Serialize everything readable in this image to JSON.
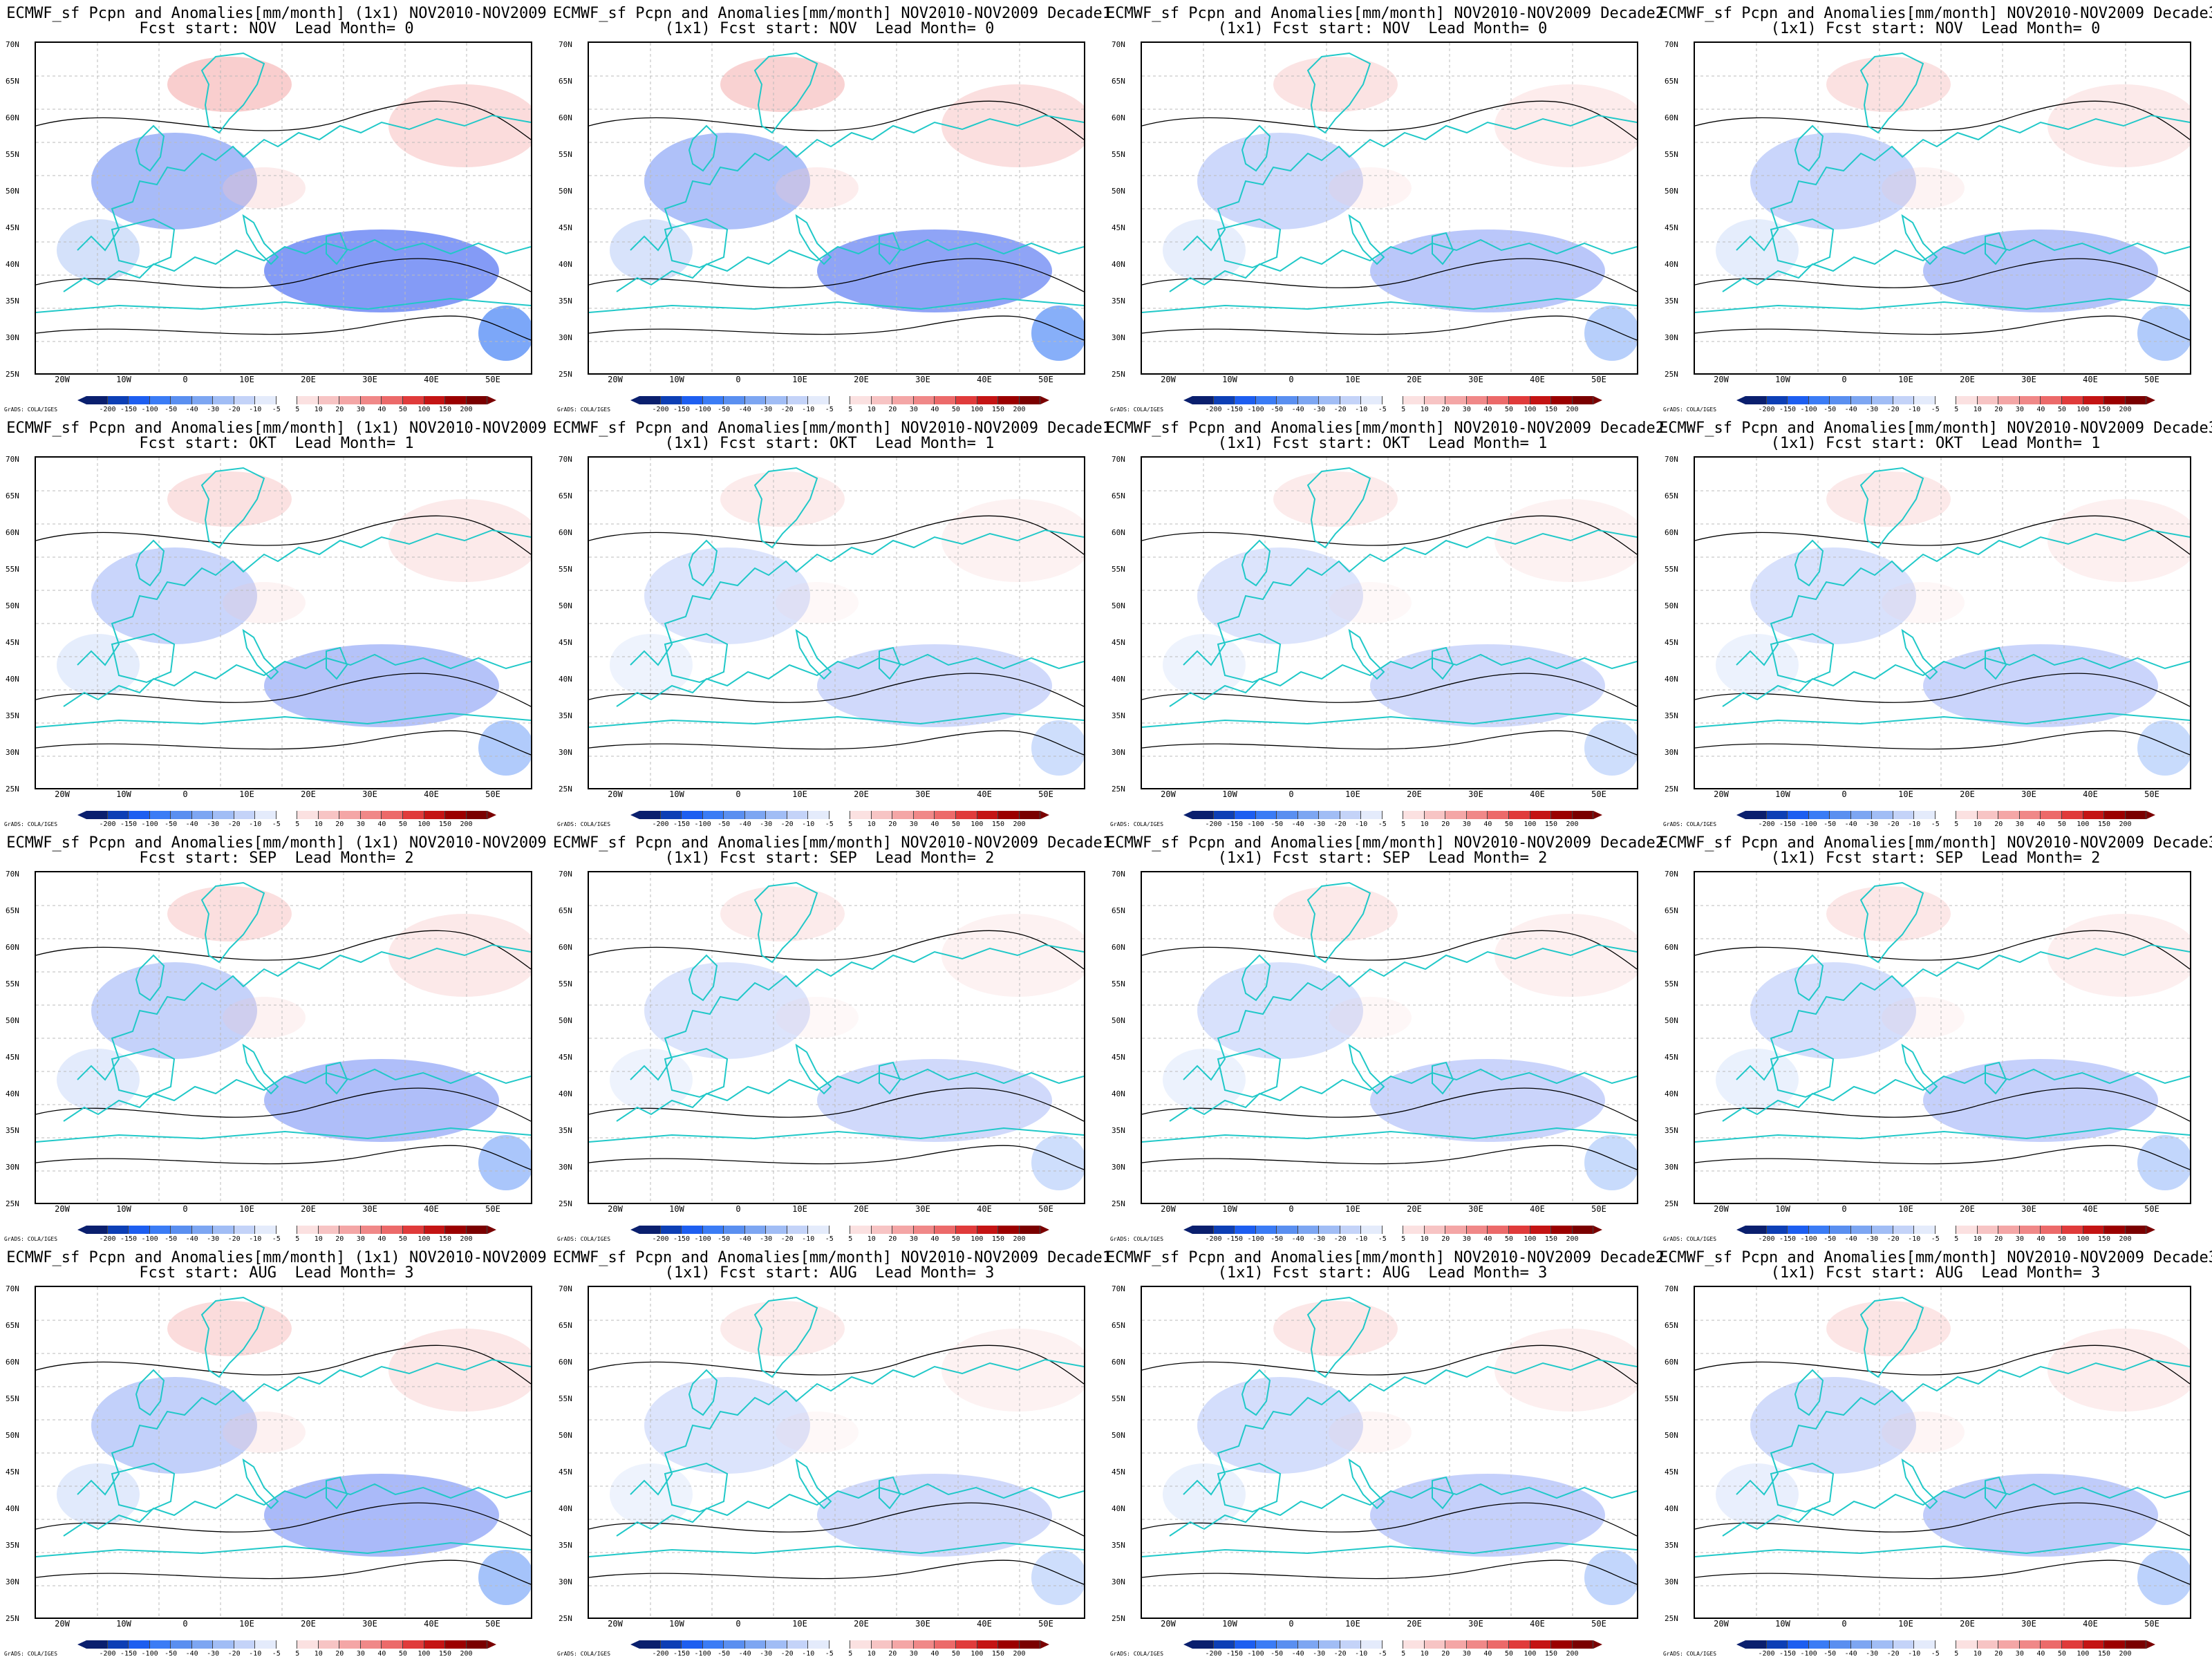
{
  "panels": [
    {
      "title1": "ECMWF_sf Pcpn and Anomalies[mm/month] (1x1) NOV2010-NOV2009",
      "title2": "Fcst start: NOV  Lead Month= 0"
    },
    {
      "title1": "ECMWF_sf Pcpn and Anomalies[mm/month] NOV2010-NOV2009 Decade1",
      "title2": "(1x1) Fcst start: NOV  Lead Month= 0"
    },
    {
      "title1": "ECMWF_sf Pcpn and Anomalies[mm/month] NOV2010-NOV2009 Decade2",
      "title2": "(1x1) Fcst start: NOV  Lead Month= 0"
    },
    {
      "title1": "ECMWF_sf Pcpn and Anomalies[mm/month] NOV2010-NOV2009 Decade3",
      "title2": "(1x1) Fcst start: NOV  Lead Month= 0"
    },
    {
      "title1": "ECMWF_sf Pcpn and Anomalies[mm/month] (1x1) NOV2010-NOV2009",
      "title2": "Fcst start: OKT  Lead Month= 1"
    },
    {
      "title1": "ECMWF_sf Pcpn and Anomalies[mm/month] NOV2010-NOV2009 Decade1",
      "title2": "(1x1) Fcst start: OKT  Lead Month= 1"
    },
    {
      "title1": "ECMWF_sf Pcpn and Anomalies[mm/month] NOV2010-NOV2009 Decade2",
      "title2": "(1x1) Fcst start: OKT  Lead Month= 1"
    },
    {
      "title1": "ECMWF_sf Pcpn and Anomalies[mm/month] NOV2010-NOV2009 Decade3",
      "title2": "(1x1) Fcst start: OKT  Lead Month= 1"
    },
    {
      "title1": "ECMWF_sf Pcpn and Anomalies[mm/month] (1x1) NOV2010-NOV2009",
      "title2": "Fcst start: SEP  Lead Month= 2"
    },
    {
      "title1": "ECMWF_sf Pcpn and Anomalies[mm/month] NOV2010-NOV2009 Decade1",
      "title2": "(1x1) Fcst start: SEP  Lead Month= 2"
    },
    {
      "title1": "ECMWF_sf Pcpn and Anomalies[mm/month] NOV2010-NOV2009 Decade2",
      "title2": "(1x1) Fcst start: SEP  Lead Month= 2"
    },
    {
      "title1": "ECMWF_sf Pcpn and Anomalies[mm/month] NOV2010-NOV2009 Decade3",
      "title2": "(1x1) Fcst start: SEP  Lead Month= 2"
    },
    {
      "title1": "ECMWF_sf Pcpn and Anomalies[mm/month] (1x1) NOV2010-NOV2009",
      "title2": "Fcst start: AUG  Lead Month= 3"
    },
    {
      "title1": "ECMWF_sf Pcpn and Anomalies[mm/month] NOV2010-NOV2009 Decade1",
      "title2": "(1x1) Fcst start: AUG  Lead Month= 3"
    },
    {
      "title1": "ECMWF_sf Pcpn and Anomalies[mm/month] NOV2010-NOV2009 Decade2",
      "title2": "(1x1) Fcst start: AUG  Lead Month= 3"
    },
    {
      "title1": "ECMWF_sf Pcpn and Anomalies[mm/month] NOV2010-NOV2009 Decade3",
      "title2": "(1x1) Fcst start: AUG  Lead Month= 3"
    }
  ],
  "map": {
    "lat_labels": [
      "70N",
      "65N",
      "60N",
      "55N",
      "50N",
      "45N",
      "40N",
      "35N",
      "30N",
      "25N"
    ],
    "lon_labels": [
      "20W",
      "10W",
      "0",
      "10E",
      "20E",
      "30E",
      "40E",
      "50E"
    ],
    "coast_color": "#20c8c8",
    "anomaly_strength": [
      0.95,
      0.85,
      0.45,
      0.5,
      0.5,
      0.25,
      0.25,
      0.3,
      0.55,
      0.25,
      0.3,
      0.35,
      0.6,
      0.25,
      0.35,
      0.4
    ]
  },
  "colorbar": {
    "ticks": [
      "-200",
      "-150",
      "-100",
      "-50",
      "-40",
      "-30",
      "-20",
      "-10",
      "-5",
      "5",
      "10",
      "20",
      "30",
      "40",
      "50",
      "100",
      "150",
      "200"
    ],
    "colors": [
      "#0a1f6e",
      "#0d3fb5",
      "#1d5ef0",
      "#3b7cf5",
      "#5a8ff0",
      "#7da6f2",
      "#a1bdf5",
      "#c4d3f8",
      "#e4ebfb",
      "#ffffff",
      "#fbe1e1",
      "#f7c4c4",
      "#f4a6a6",
      "#f08888",
      "#ec6a6a",
      "#e03b3b",
      "#c41414",
      "#9b0000",
      "#7a0000"
    ],
    "credit": "GrADS: COLA/IGES"
  }
}
